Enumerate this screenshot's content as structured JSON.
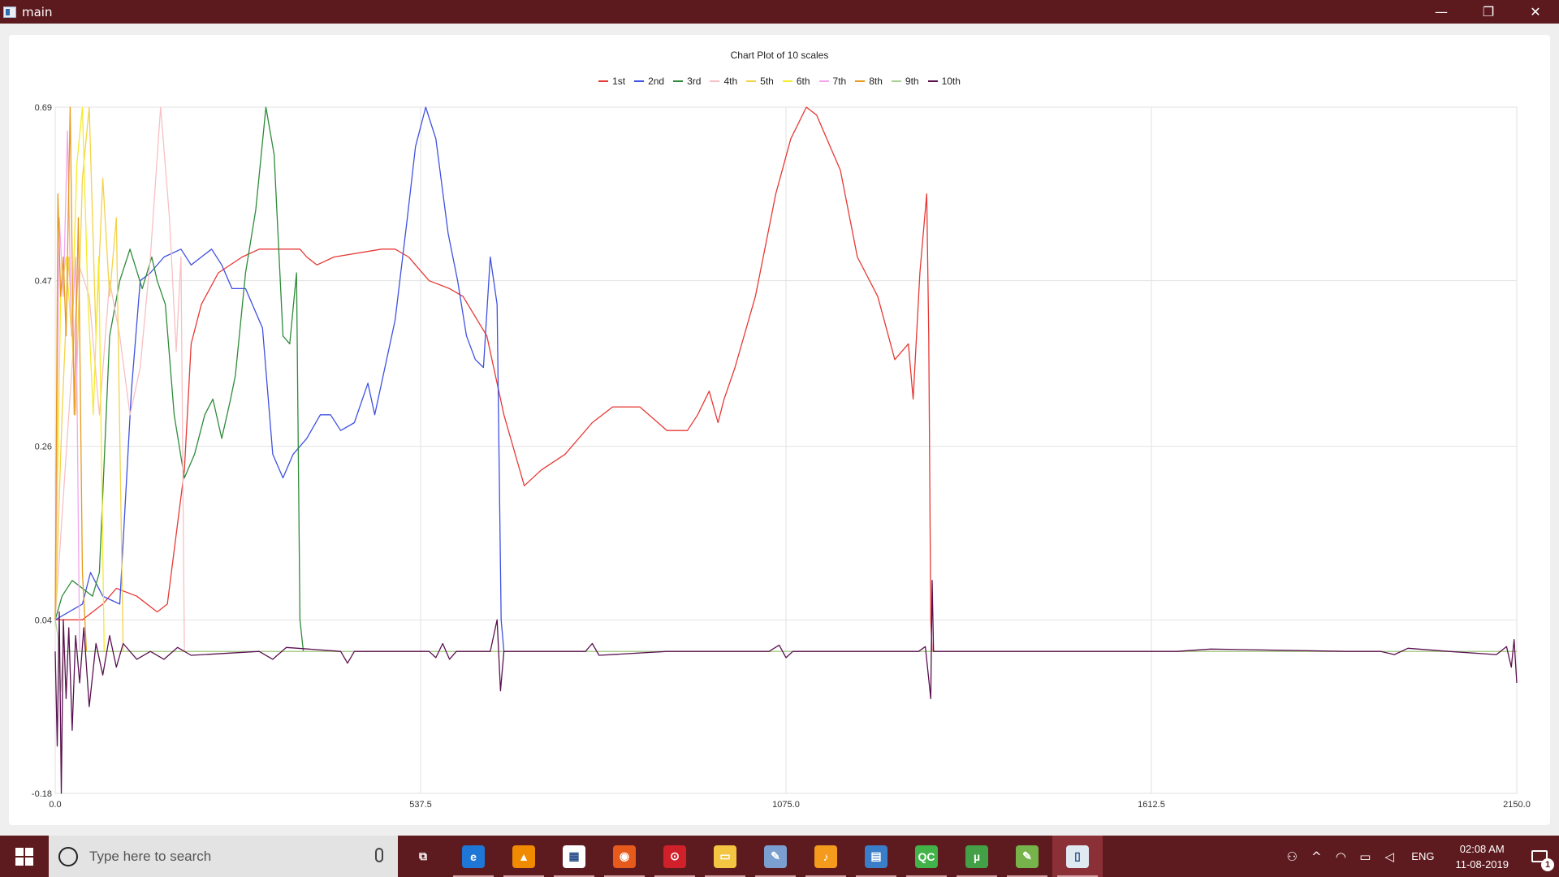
{
  "window": {
    "title": "main",
    "minimize": "—",
    "restore": "❐",
    "close": "✕"
  },
  "chart_data": {
    "type": "line",
    "title": "Chart Plot of 10 scales",
    "xlabel": "",
    "ylabel": "",
    "xlim": [
      0.0,
      2150.0
    ],
    "ylim": [
      -0.18,
      0.69
    ],
    "x_ticks": [
      "0.0",
      "537.5",
      "1075.0",
      "1612.5",
      "2150.0"
    ],
    "y_ticks": [
      "0.69",
      "0.47",
      "0.26",
      "0.04",
      "-0.18"
    ],
    "grid": true,
    "legend_position": "top",
    "series": [
      {
        "name": "1st",
        "color": "#e53935",
        "points": [
          [
            0,
            0.04
          ],
          [
            40,
            0.04
          ],
          [
            70,
            0.06
          ],
          [
            90,
            0.08
          ],
          [
            120,
            0.07
          ],
          [
            150,
            0.05
          ],
          [
            165,
            0.06
          ],
          [
            190,
            0.23
          ],
          [
            200,
            0.39
          ],
          [
            215,
            0.44
          ],
          [
            240,
            0.48
          ],
          [
            275,
            0.5
          ],
          [
            300,
            0.51
          ],
          [
            330,
            0.51
          ],
          [
            360,
            0.51
          ],
          [
            370,
            0.5
          ],
          [
            385,
            0.49
          ],
          [
            410,
            0.5
          ],
          [
            480,
            0.51
          ],
          [
            500,
            0.51
          ],
          [
            520,
            0.5
          ],
          [
            550,
            0.47
          ],
          [
            580,
            0.46
          ],
          [
            600,
            0.45
          ],
          [
            635,
            0.4
          ],
          [
            660,
            0.3
          ],
          [
            690,
            0.21
          ],
          [
            715,
            0.23
          ],
          [
            750,
            0.25
          ],
          [
            790,
            0.29
          ],
          [
            820,
            0.31
          ],
          [
            860,
            0.31
          ],
          [
            900,
            0.28
          ],
          [
            930,
            0.28
          ],
          [
            945,
            0.3
          ],
          [
            962,
            0.33
          ],
          [
            975,
            0.29
          ],
          [
            984,
            0.32
          ],
          [
            1000,
            0.36
          ],
          [
            1030,
            0.45
          ],
          [
            1060,
            0.58
          ],
          [
            1082,
            0.65
          ],
          [
            1105,
            0.69
          ],
          [
            1120,
            0.68
          ],
          [
            1155,
            0.61
          ],
          [
            1180,
            0.5
          ],
          [
            1210,
            0.45
          ],
          [
            1235,
            0.37
          ],
          [
            1255,
            0.39
          ],
          [
            1262,
            0.32
          ],
          [
            1272,
            0.48
          ],
          [
            1282,
            0.58
          ],
          [
            1285,
            0.4
          ],
          [
            1288,
            0.04
          ],
          [
            1290,
            0.0
          ],
          [
            2150,
            0.0
          ]
        ]
      },
      {
        "name": "2nd",
        "color": "#3f51e0",
        "points": [
          [
            0,
            0.04
          ],
          [
            40,
            0.06
          ],
          [
            52,
            0.1
          ],
          [
            70,
            0.07
          ],
          [
            95,
            0.06
          ],
          [
            112,
            0.33
          ],
          [
            125,
            0.47
          ],
          [
            140,
            0.48
          ],
          [
            160,
            0.5
          ],
          [
            185,
            0.51
          ],
          [
            200,
            0.49
          ],
          [
            215,
            0.5
          ],
          [
            230,
            0.51
          ],
          [
            245,
            0.49
          ],
          [
            260,
            0.46
          ],
          [
            280,
            0.46
          ],
          [
            305,
            0.41
          ],
          [
            320,
            0.25
          ],
          [
            335,
            0.22
          ],
          [
            350,
            0.25
          ],
          [
            370,
            0.27
          ],
          [
            390,
            0.3
          ],
          [
            405,
            0.3
          ],
          [
            420,
            0.28
          ],
          [
            440,
            0.29
          ],
          [
            460,
            0.34
          ],
          [
            470,
            0.3
          ],
          [
            480,
            0.34
          ],
          [
            500,
            0.42
          ],
          [
            518,
            0.55
          ],
          [
            530,
            0.64
          ],
          [
            545,
            0.69
          ],
          [
            560,
            0.65
          ],
          [
            578,
            0.53
          ],
          [
            592,
            0.47
          ],
          [
            605,
            0.4
          ],
          [
            618,
            0.37
          ],
          [
            630,
            0.36
          ],
          [
            640,
            0.5
          ],
          [
            650,
            0.44
          ],
          [
            656,
            0.04
          ],
          [
            660,
            0.0
          ],
          [
            2150,
            0.0
          ]
        ]
      },
      {
        "name": "3rd",
        "color": "#2e8b3a",
        "points": [
          [
            0,
            0.04
          ],
          [
            10,
            0.07
          ],
          [
            25,
            0.09
          ],
          [
            40,
            0.08
          ],
          [
            55,
            0.07
          ],
          [
            65,
            0.1
          ],
          [
            80,
            0.4
          ],
          [
            95,
            0.47
          ],
          [
            110,
            0.51
          ],
          [
            128,
            0.46
          ],
          [
            142,
            0.5
          ],
          [
            150,
            0.47
          ],
          [
            162,
            0.44
          ],
          [
            175,
            0.3
          ],
          [
            190,
            0.22
          ],
          [
            205,
            0.25
          ],
          [
            220,
            0.3
          ],
          [
            232,
            0.32
          ],
          [
            245,
            0.27
          ],
          [
            258,
            0.32
          ],
          [
            265,
            0.35
          ],
          [
            280,
            0.48
          ],
          [
            295,
            0.56
          ],
          [
            310,
            0.69
          ],
          [
            322,
            0.63
          ],
          [
            335,
            0.4
          ],
          [
            345,
            0.39
          ],
          [
            355,
            0.48
          ],
          [
            360,
            0.04
          ],
          [
            365,
            0.0
          ],
          [
            2150,
            0.0
          ]
        ]
      },
      {
        "name": "4th",
        "color": "#f7c0c4",
        "points": [
          [
            0,
            0.04
          ],
          [
            20,
            0.3
          ],
          [
            35,
            0.49
          ],
          [
            50,
            0.45
          ],
          [
            65,
            0.3
          ],
          [
            80,
            0.47
          ],
          [
            95,
            0.4
          ],
          [
            110,
            0.3
          ],
          [
            125,
            0.36
          ],
          [
            140,
            0.5
          ],
          [
            155,
            0.69
          ],
          [
            168,
            0.55
          ],
          [
            178,
            0.38
          ],
          [
            185,
            0.5
          ],
          [
            190,
            0.0
          ],
          [
            2150,
            0.0
          ]
        ]
      },
      {
        "name": "5th",
        "color": "#f3d24a",
        "points": [
          [
            0,
            0.04
          ],
          [
            10,
            0.3
          ],
          [
            20,
            0.5
          ],
          [
            30,
            0.3
          ],
          [
            40,
            0.6
          ],
          [
            50,
            0.69
          ],
          [
            60,
            0.4
          ],
          [
            70,
            0.6
          ],
          [
            80,
            0.45
          ],
          [
            90,
            0.55
          ],
          [
            100,
            0.0
          ],
          [
            2150,
            0.0
          ]
        ]
      },
      {
        "name": "6th",
        "color": "#f6ea2a",
        "points": [
          [
            0,
            0.04
          ],
          [
            8,
            0.45
          ],
          [
            16,
            0.5
          ],
          [
            24,
            0.4
          ],
          [
            32,
            0.62
          ],
          [
            40,
            0.69
          ],
          [
            48,
            0.45
          ],
          [
            56,
            0.3
          ],
          [
            64,
            0.5
          ],
          [
            72,
            0.0
          ],
          [
            2150,
            0.0
          ]
        ]
      },
      {
        "name": "7th",
        "color": "#f3a6ee",
        "points": [
          [
            0,
            0.04
          ],
          [
            6,
            0.55
          ],
          [
            12,
            0.45
          ],
          [
            18,
            0.66
          ],
          [
            24,
            0.4
          ],
          [
            30,
            0.5
          ],
          [
            36,
            0.0
          ],
          [
            2150,
            0.0
          ]
        ]
      },
      {
        "name": "8th",
        "color": "#e69a1c",
        "points": [
          [
            0,
            0.04
          ],
          [
            4,
            0.58
          ],
          [
            8,
            0.45
          ],
          [
            12,
            0.5
          ],
          [
            16,
            0.4
          ],
          [
            22,
            0.69
          ],
          [
            28,
            0.3
          ],
          [
            34,
            0.55
          ],
          [
            40,
            0.1
          ],
          [
            46,
            0.0
          ],
          [
            2150,
            0.0
          ]
        ]
      },
      {
        "name": "9th",
        "color": "#a9d196",
        "points": [
          [
            0,
            0.04
          ],
          [
            4,
            0.02
          ],
          [
            8,
            -0.05
          ],
          [
            12,
            0.0
          ],
          [
            2150,
            0.0
          ]
        ]
      },
      {
        "name": "10th",
        "color": "#5a1050",
        "points": [
          [
            0,
            0.0
          ],
          [
            3,
            -0.12
          ],
          [
            6,
            0.05
          ],
          [
            9,
            -0.18
          ],
          [
            12,
            0.04
          ],
          [
            16,
            -0.06
          ],
          [
            20,
            0.03
          ],
          [
            25,
            -0.1
          ],
          [
            30,
            0.02
          ],
          [
            36,
            -0.04
          ],
          [
            42,
            0.03
          ],
          [
            50,
            -0.07
          ],
          [
            60,
            0.01
          ],
          [
            70,
            -0.03
          ],
          [
            80,
            0.02
          ],
          [
            90,
            -0.02
          ],
          [
            100,
            0.01
          ],
          [
            120,
            -0.01
          ],
          [
            140,
            0.0
          ],
          [
            160,
            -0.01
          ],
          [
            180,
            0.005
          ],
          [
            200,
            -0.005
          ],
          [
            300,
            0.0
          ],
          [
            320,
            -0.01
          ],
          [
            340,
            0.005
          ],
          [
            420,
            0.0
          ],
          [
            430,
            -0.015
          ],
          [
            440,
            0.0
          ],
          [
            550,
            0.0
          ],
          [
            560,
            -0.008
          ],
          [
            570,
            0.01
          ],
          [
            580,
            -0.01
          ],
          [
            590,
            0.0
          ],
          [
            640,
            0.0
          ],
          [
            650,
            0.04
          ],
          [
            655,
            -0.05
          ],
          [
            660,
            0.0
          ],
          [
            780,
            0.0
          ],
          [
            790,
            0.01
          ],
          [
            800,
            -0.005
          ],
          [
            900,
            0.0
          ],
          [
            1000,
            0.0
          ],
          [
            1050,
            0.0
          ],
          [
            1065,
            0.008
          ],
          [
            1075,
            -0.008
          ],
          [
            1085,
            0.0
          ],
          [
            1270,
            0.0
          ],
          [
            1280,
            0.006
          ],
          [
            1288,
            -0.06
          ],
          [
            1290,
            0.09
          ],
          [
            1292,
            0.0
          ],
          [
            1500,
            0.0
          ],
          [
            1650,
            0.0
          ],
          [
            1700,
            0.003
          ],
          [
            1900,
            0.0
          ],
          [
            1950,
            0.0
          ],
          [
            1970,
            -0.004
          ],
          [
            1990,
            0.004
          ],
          [
            2050,
            0.0
          ],
          [
            2120,
            -0.004
          ],
          [
            2135,
            0.006
          ],
          [
            2142,
            -0.02
          ],
          [
            2146,
            0.015
          ],
          [
            2150,
            -0.04
          ]
        ]
      }
    ]
  },
  "taskbar": {
    "search_placeholder": "Type here to search",
    "apps": [
      {
        "name": "task-view",
        "label": "⧉",
        "color": "#5e1b1f"
      },
      {
        "name": "edge",
        "label": "e",
        "color": "#1e76d6"
      },
      {
        "name": "vlc",
        "label": "▲",
        "color": "#f08a00"
      },
      {
        "name": "store",
        "label": "▦",
        "color": "#ffffff"
      },
      {
        "name": "firefox",
        "label": "◉",
        "color": "#e65a1c"
      },
      {
        "name": "media-app",
        "label": "⊙",
        "color": "#d0202a"
      },
      {
        "name": "file-explorer",
        "label": "▭",
        "color": "#f4c542"
      },
      {
        "name": "paint",
        "label": "✎",
        "color": "#7a9fd0"
      },
      {
        "name": "fl-studio",
        "label": "♪",
        "color": "#f49b1d"
      },
      {
        "name": "control-panel",
        "label": "▤",
        "color": "#3a7dc9"
      },
      {
        "name": "qt-creator",
        "label": "QC",
        "color": "#41b349"
      },
      {
        "name": "utorrent",
        "label": "µ",
        "color": "#43a047"
      },
      {
        "name": "notepad",
        "label": "✎",
        "color": "#76b34a"
      },
      {
        "name": "main-app",
        "label": "▯",
        "color": "#dfe9f2"
      }
    ],
    "tray": {
      "people": "⚇",
      "chevron": "^",
      "wifi": "◠",
      "battery": "▭",
      "volume": "◁",
      "language": "ENG"
    },
    "time": "02:08 AM",
    "date": "11-08-2019",
    "notifications": "1"
  }
}
